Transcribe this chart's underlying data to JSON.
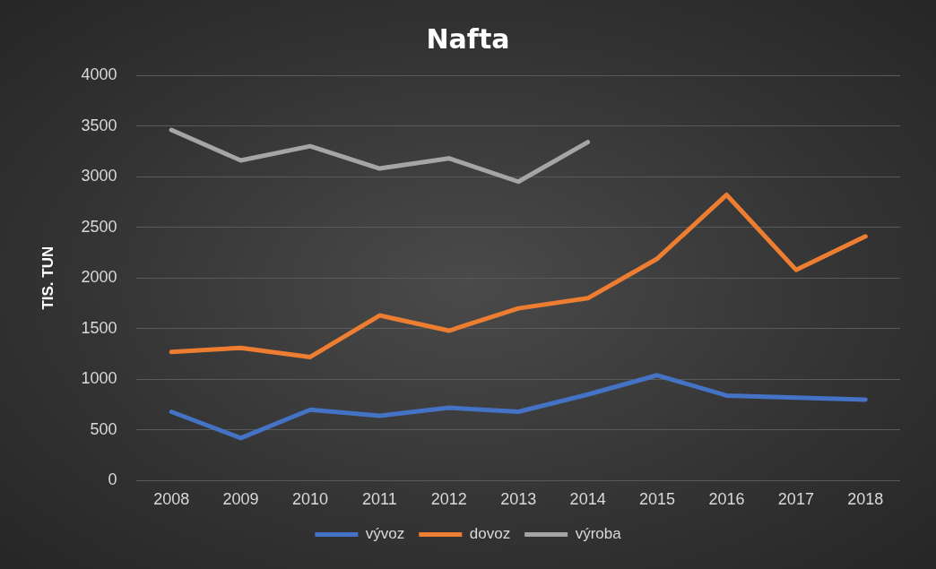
{
  "chart_data": {
    "type": "line",
    "title": "Nafta",
    "ylabel": "TIS. TUN",
    "categories": [
      "2008",
      "2009",
      "2010",
      "2011",
      "2012",
      "2013",
      "2014",
      "2015",
      "2016",
      "2017",
      "2018"
    ],
    "series": [
      {
        "name": "vývoz",
        "color": "#4472c4",
        "values": [
          680,
          420,
          700,
          640,
          720,
          680,
          850,
          1040,
          840,
          820,
          800
        ]
      },
      {
        "name": "dovoz",
        "color": "#ed7d31",
        "values": [
          1270,
          1310,
          1220,
          1630,
          1480,
          1700,
          1800,
          2190,
          2820,
          2080,
          2410
        ]
      },
      {
        "name": "výroba",
        "color": "#a5a5a5",
        "values": [
          3460,
          3160,
          3300,
          3080,
          3180,
          2950,
          3340,
          null,
          null,
          null,
          null
        ]
      }
    ],
    "ylim": [
      0,
      4000
    ],
    "yticks": [
      0,
      500,
      1000,
      1500,
      2000,
      2500,
      3000,
      3500,
      4000
    ],
    "grid": "y",
    "legend": "bottom",
    "marker": "none",
    "line_style": "solid"
  }
}
